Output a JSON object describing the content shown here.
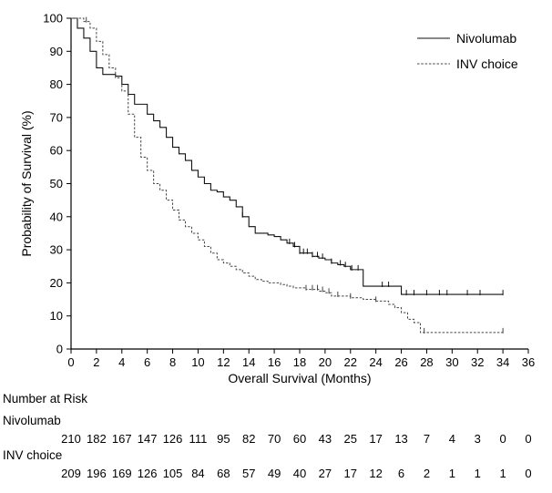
{
  "chart_data": {
    "type": "line",
    "xlabel": "Overall Survival (Months)",
    "ylabel": "Probability of Survival (%)",
    "xlim": [
      0,
      36
    ],
    "ylim": [
      0,
      100
    ],
    "x_ticks": [
      0,
      2,
      4,
      6,
      8,
      10,
      12,
      14,
      16,
      18,
      20,
      22,
      24,
      26,
      28,
      30,
      32,
      34,
      36
    ],
    "y_ticks": [
      0,
      10,
      20,
      30,
      40,
      50,
      60,
      70,
      80,
      90,
      100
    ],
    "grid": false,
    "legend_position": "top-right",
    "series": [
      {
        "name": "Nivolumab",
        "line_style": "solid",
        "x": [
          0,
          0.5,
          1,
          1.5,
          2,
          2.5,
          3,
          3.5,
          4,
          4.5,
          5,
          5.5,
          6,
          6.5,
          7,
          7.5,
          8,
          8.5,
          9,
          9.5,
          10,
          10.5,
          11,
          11.5,
          12,
          12.5,
          13,
          13.5,
          14,
          14.5,
          15,
          15.5,
          16,
          16.5,
          17,
          17.5,
          18,
          18.5,
          19,
          19.5,
          20,
          20.5,
          21,
          21.5,
          22,
          22.5,
          23,
          24,
          25,
          26,
          27,
          28,
          29,
          30,
          31,
          32,
          33,
          34
        ],
        "y": [
          100,
          97,
          94,
          90,
          85,
          83,
          83,
          82.5,
          80,
          77,
          74,
          74,
          71,
          69,
          67,
          64,
          61,
          59,
          57,
          54,
          52,
          50,
          48,
          47.5,
          46,
          45,
          43,
          40,
          37,
          35,
          35,
          34.5,
          34,
          33,
          32,
          31,
          29,
          29,
          28,
          27.5,
          27,
          26,
          25.5,
          25,
          24,
          24,
          19,
          19,
          19,
          16.5,
          16.5,
          16.5,
          16.5,
          16.5,
          16.5,
          16.5,
          16.5,
          16.5
        ],
        "censored_x": [
          13.5,
          17.2,
          17.6,
          18.0,
          18.3,
          18.6,
          19.0,
          19.4,
          19.8,
          20.5,
          21.2,
          21.6,
          22.1,
          22.6,
          24.5,
          25.0,
          26.4,
          27.0,
          28.0,
          29.0,
          29.6,
          31.2,
          32.2,
          34.0
        ]
      },
      {
        "name": "INV choice",
        "line_style": "dashed",
        "x": [
          0,
          0.5,
          1,
          1.5,
          2,
          2.5,
          3,
          3.5,
          4,
          4.5,
          5,
          5.5,
          6,
          6.5,
          7,
          7.5,
          8,
          8.5,
          9,
          9.5,
          10,
          10.5,
          11,
          11.5,
          12,
          12.5,
          13,
          13.5,
          14,
          14.5,
          15,
          15.5,
          16,
          16.5,
          17,
          17.5,
          18,
          18.5,
          19,
          19.5,
          20,
          20.5,
          21,
          22,
          23,
          24,
          25,
          25.5,
          26,
          26.5,
          27,
          27.5,
          28,
          29,
          30,
          31,
          32,
          33,
          34
        ],
        "y": [
          100,
          100,
          99,
          97,
          93,
          89,
          85,
          82,
          78,
          71,
          64,
          58,
          54,
          50,
          48,
          45,
          42,
          39,
          37,
          35,
          33,
          31,
          29,
          27,
          26,
          25,
          24,
          23,
          22,
          21,
          20.5,
          20,
          20,
          19.5,
          19,
          18.5,
          18.5,
          18,
          18,
          17.5,
          17,
          16,
          16,
          15.5,
          15,
          14.5,
          13.5,
          12.5,
          11,
          9,
          8,
          5,
          5,
          5,
          5,
          5,
          5,
          5,
          5
        ],
        "censored_x": [
          1.2,
          18.5,
          19.0,
          19.4,
          19.8,
          20.3,
          21.0,
          22.0,
          24.0,
          27.8,
          34.0
        ]
      }
    ]
  },
  "risk_table": {
    "title": "Number at Risk",
    "times": [
      0,
      2,
      4,
      6,
      8,
      10,
      12,
      14,
      16,
      18,
      20,
      22,
      24,
      26,
      28,
      30,
      32,
      34,
      36
    ],
    "rows": [
      {
        "label": "Nivolumab",
        "values": [
          "210",
          "182",
          "167",
          "147",
          "126",
          "111",
          "95",
          "82",
          "70",
          "60",
          "43",
          "25",
          "17",
          "13",
          "7",
          "4",
          "3",
          "0",
          "0"
        ]
      },
      {
        "label": "INV choice",
        "values": [
          "209",
          "196",
          "169",
          "126",
          "105",
          "84",
          "68",
          "57",
          "49",
          "40",
          "27",
          "17",
          "12",
          "6",
          "2",
          "1",
          "1",
          "1",
          "0"
        ]
      }
    ]
  }
}
